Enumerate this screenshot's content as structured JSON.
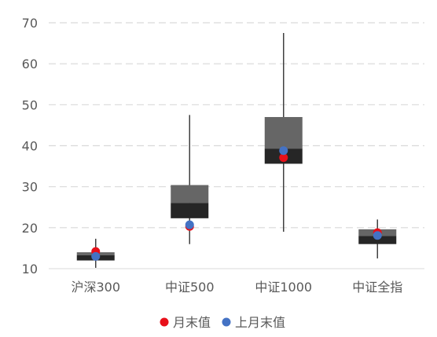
{
  "chart_data": {
    "type": "box",
    "categories": [
      "沪深300",
      "中证500",
      "中证1000",
      "中证全指"
    ],
    "ylim": [
      10,
      70
    ],
    "yticks": [
      10,
      20,
      30,
      40,
      50,
      60,
      70
    ],
    "grid": true,
    "legend_position": "bottom",
    "boxes": [
      {
        "category": "沪深300",
        "min": 10.2,
        "q1": 12.0,
        "median": 13.3,
        "q3": 14.0,
        "max": 17.3
      },
      {
        "category": "中证500",
        "min": 16.0,
        "q1": 22.3,
        "median": 26.0,
        "q3": 30.4,
        "max": 47.5
      },
      {
        "category": "中证1000",
        "min": 19.0,
        "q1": 35.6,
        "median": 39.3,
        "q3": 47.0,
        "max": 67.5
      },
      {
        "category": "中证全指",
        "min": 12.5,
        "q1": 16.0,
        "median": 18.0,
        "q3": 19.6,
        "max": 22.0
      }
    ],
    "series": [
      {
        "name": "月末值",
        "color": "#e8101a",
        "values": [
          14.2,
          20.3,
          37.1,
          18.8
        ]
      },
      {
        "name": "上月末值",
        "color": "#4472c4",
        "values": [
          13.0,
          20.7,
          38.8,
          18.1
        ]
      }
    ],
    "box_colors": {
      "upper": "#666666",
      "lower": "#262626",
      "whisker": "#404040"
    }
  }
}
